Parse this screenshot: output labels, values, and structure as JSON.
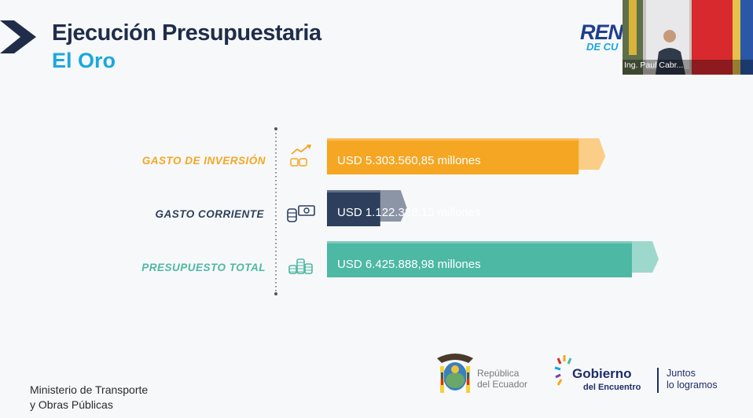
{
  "header": {
    "title_line1": "Ejecución Presupuestaria",
    "title_line2": "El Oro"
  },
  "chart_data": {
    "type": "bar",
    "orientation": "horizontal",
    "categories": [
      "GASTO DE INVERSIÓN",
      "GASTO CORRIENTE",
      "PRESUPUESTO TOTAL"
    ],
    "values": [
      5303560.85,
      1122328.13,
      6425888.98
    ],
    "value_labels": [
      "USD 5.303.560,85 millones",
      "USD 1.122.328,13 millones",
      "USD 6.425.888,98 millones"
    ],
    "colors": [
      "#f5a623",
      "#2d3f5c",
      "#4db8a4"
    ],
    "category_colors": [
      "#f5a623",
      "#2d3f5c",
      "#4db8a4"
    ],
    "icons": [
      "growth-coins-icon",
      "cash-coins-icon",
      "coin-stack-icon"
    ]
  },
  "video": {
    "participant_name": "Ing. Paul Cabr..."
  },
  "logo": {
    "rend_text": "REN",
    "rend_sub": "DE CU"
  },
  "footer": {
    "ministry_line1": "Ministerio de Transporte",
    "ministry_line2": "y Obras Públicas",
    "republica_line1": "República",
    "republica_line2": "del Ecuador",
    "gobierno_line1": "Gobierno",
    "gobierno_line2": "del Encuentro",
    "juntos_line1": "Juntos",
    "juntos_line2": "lo logramos"
  }
}
